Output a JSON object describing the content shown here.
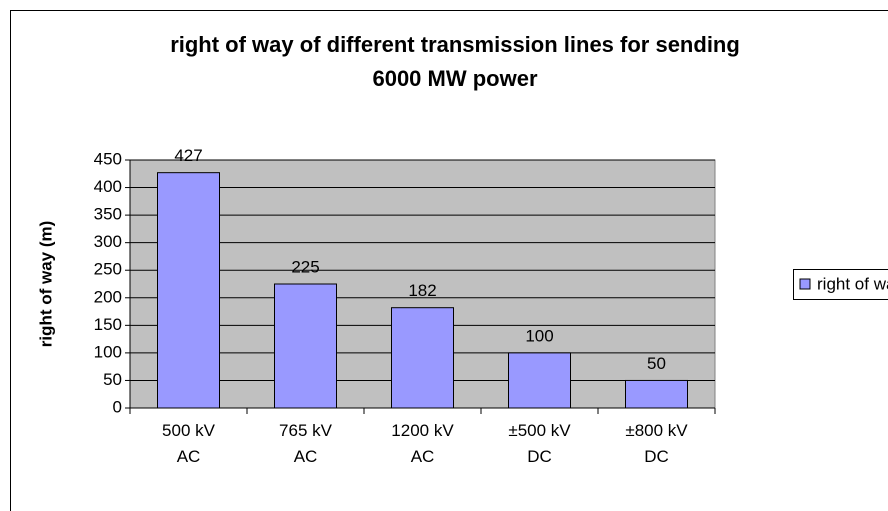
{
  "chart_data": {
    "type": "bar",
    "title": "right of way of different transmission lines for sending 6000 MW power",
    "y_label": "right of way (m)",
    "categories": [
      "500 kV AC",
      "765 kV AC",
      "1200 kV AC",
      "±500 kV DC",
      "±800 kV DC"
    ],
    "series": [
      {
        "name": "right of way",
        "color": "#9999ff",
        "values": [
          427,
          225,
          182,
          100,
          50
        ]
      }
    ],
    "ylim": [
      0,
      450
    ],
    "yticks": [
      0,
      50,
      100,
      150,
      200,
      250,
      300,
      350,
      400,
      450
    ],
    "grid": true,
    "legend": "right"
  }
}
